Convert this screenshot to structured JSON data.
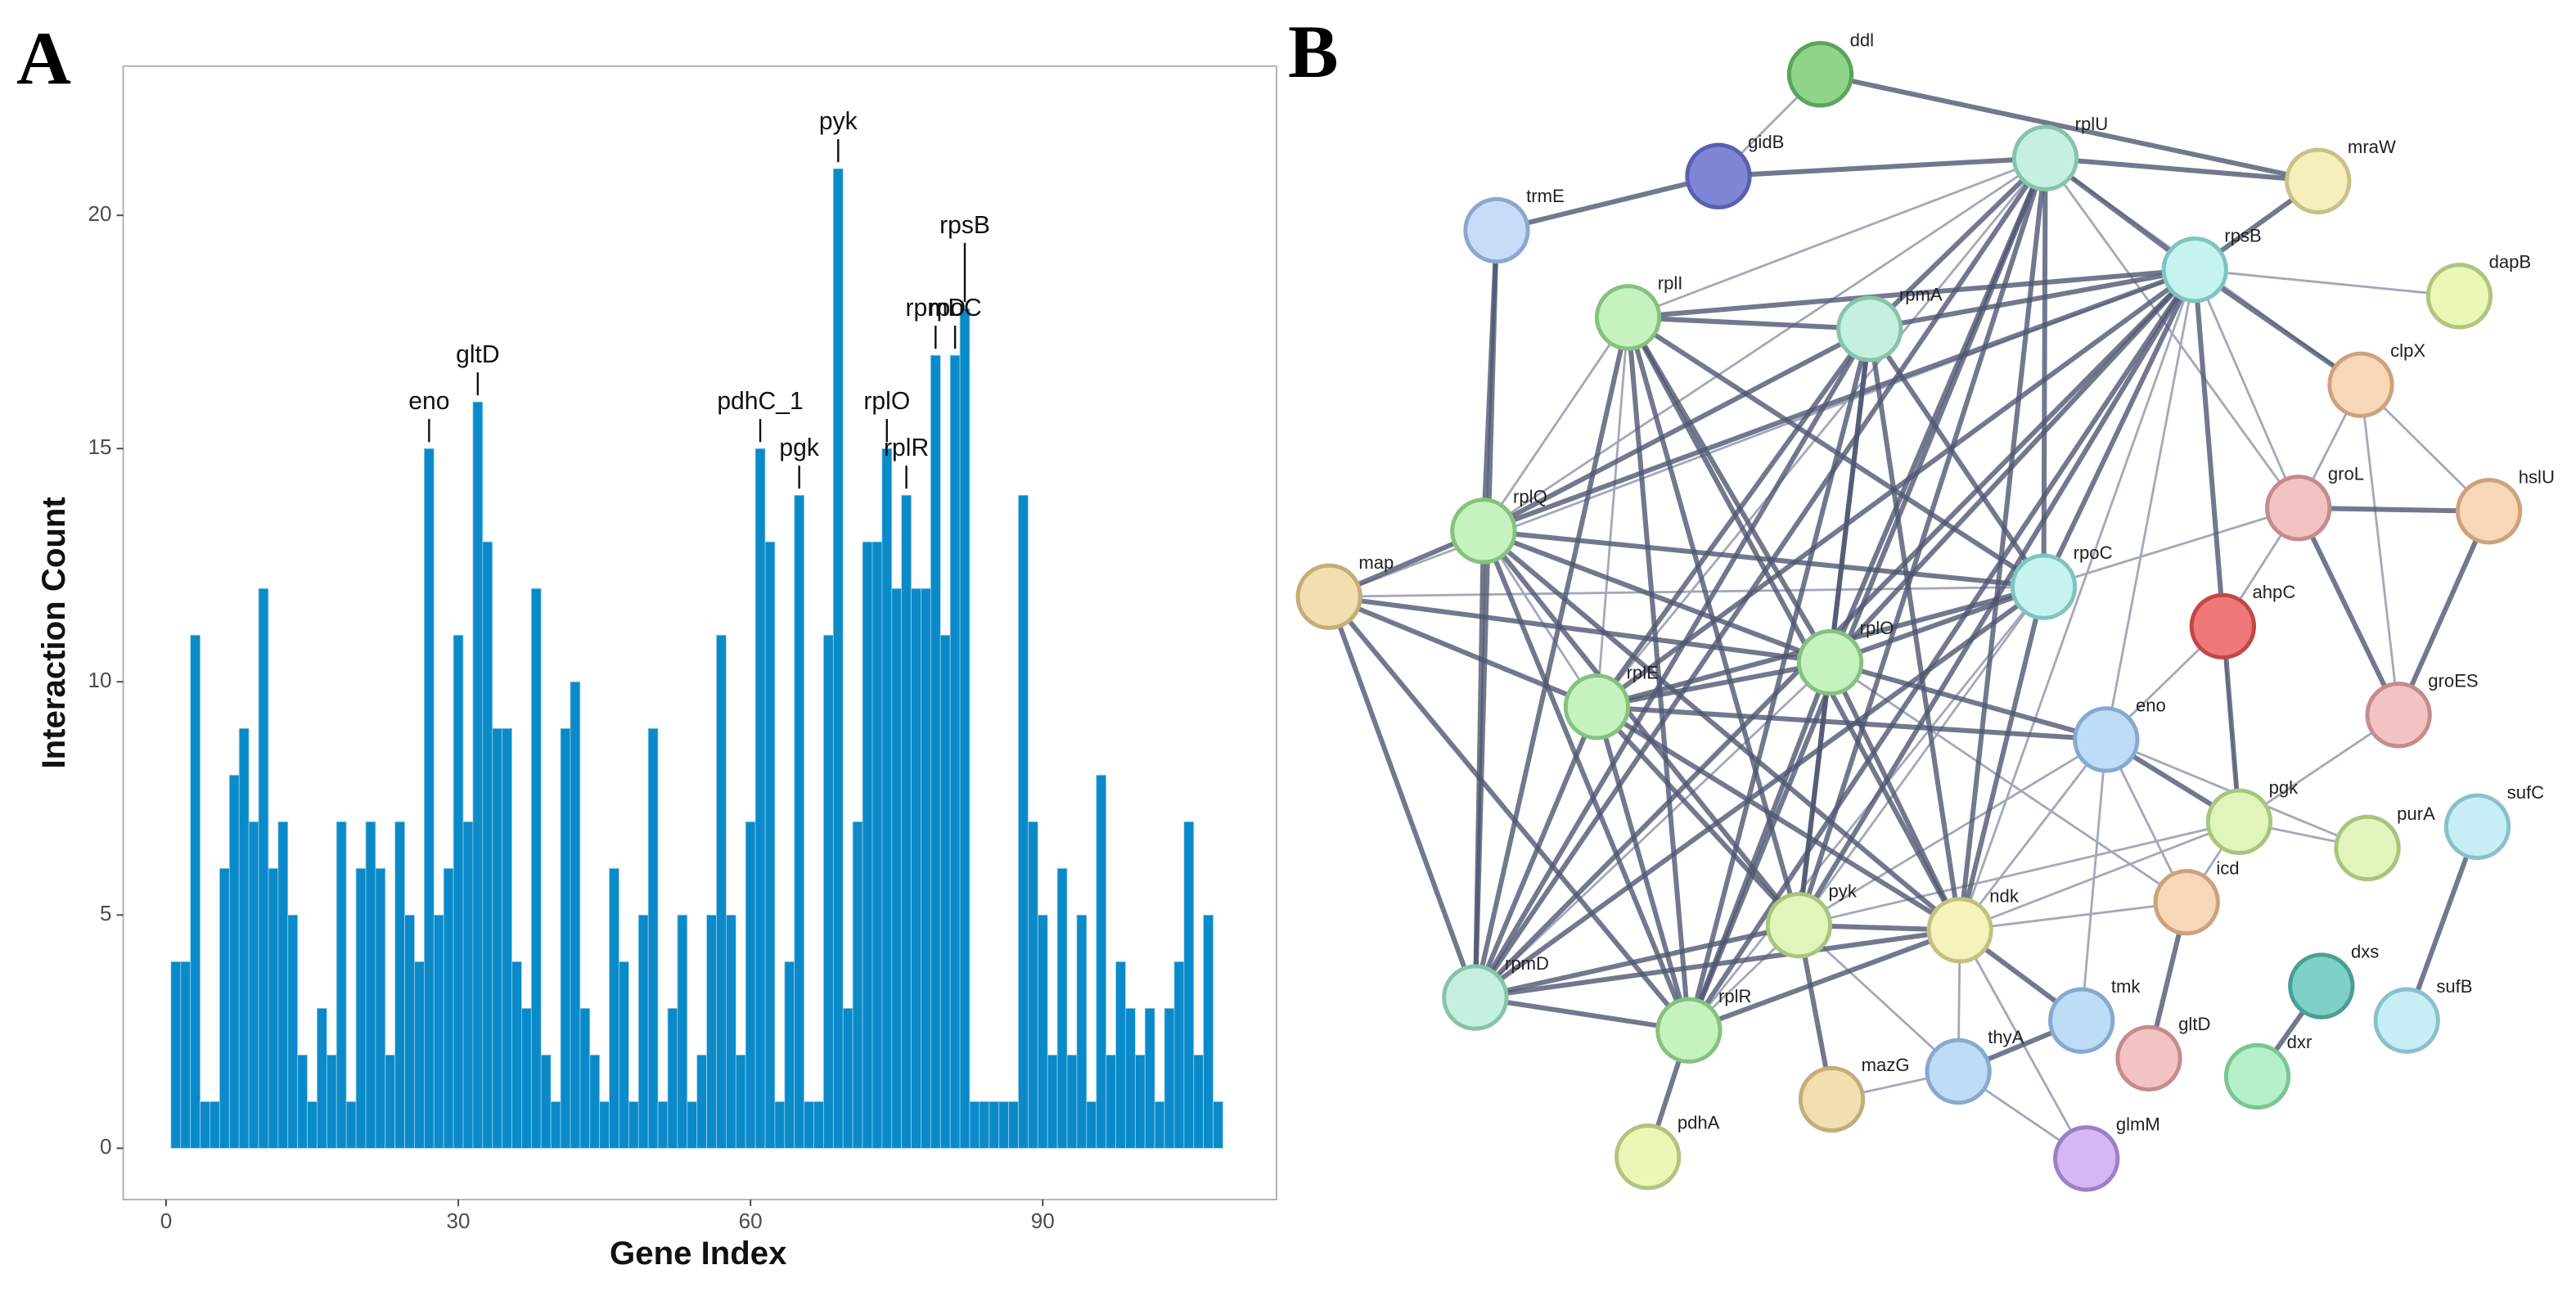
{
  "panel_labels": [
    "A",
    "B"
  ],
  "chart_data": {
    "type": "bar",
    "xlabel": "Gene Index",
    "ylabel": "Interaction Count",
    "color": "#0a8ac8",
    "x": [
      1,
      2,
      3,
      4,
      5,
      6,
      7,
      8,
      9,
      10,
      11,
      12,
      13,
      14,
      15,
      16,
      17,
      18,
      19,
      20,
      21,
      22,
      23,
      24,
      25,
      26,
      27,
      28,
      29,
      30,
      31,
      32,
      33,
      34,
      35,
      36,
      37,
      38,
      39,
      40,
      41,
      42,
      43,
      44,
      45,
      46,
      47,
      48,
      49,
      50,
      51,
      52,
      53,
      54,
      55,
      56,
      57,
      58,
      59,
      60,
      61,
      62,
      63,
      64,
      65,
      66,
      67,
      68,
      69,
      70,
      71,
      72,
      73,
      74,
      75,
      76,
      77,
      78,
      79,
      80,
      81,
      82,
      83,
      84,
      85,
      86,
      87,
      88,
      89,
      90,
      91,
      92,
      93,
      94,
      95,
      96,
      97,
      98,
      99,
      100,
      101,
      102,
      103,
      104,
      105,
      106,
      107,
      108
    ],
    "values": [
      4,
      4,
      11,
      1,
      1,
      6,
      8,
      9,
      7,
      12,
      6,
      7,
      5,
      2,
      1,
      3,
      2,
      7,
      1,
      6,
      7,
      6,
      2,
      7,
      5,
      4,
      15,
      5,
      6,
      11,
      7,
      16,
      13,
      9,
      9,
      4,
      3,
      12,
      2,
      1,
      9,
      10,
      3,
      2,
      1,
      6,
      4,
      1,
      5,
      9,
      1,
      3,
      5,
      1,
      2,
      5,
      11,
      5,
      2,
      7,
      15,
      13,
      1,
      4,
      14,
      1,
      1,
      11,
      21,
      3,
      7,
      13,
      13,
      15,
      12,
      14,
      12,
      12,
      17,
      11,
      17,
      18,
      1,
      1,
      1,
      1,
      1,
      14,
      7,
      5,
      2,
      6,
      2,
      5,
      1,
      8,
      2,
      4,
      3,
      2,
      3,
      1,
      3,
      4,
      7,
      2,
      5,
      1
    ],
    "xlim": [
      -4.4,
      114
    ],
    "ylim": [
      -1.1,
      23.2
    ],
    "xticks": [
      0,
      30,
      60,
      90
    ],
    "yticks": [
      0,
      5,
      10,
      15,
      20
    ],
    "grid": false,
    "annotations": [
      {
        "text": "eno",
        "x": 27
      },
      {
        "text": "gltD",
        "x": 32
      },
      {
        "text": "pdhC_1",
        "x": 61
      },
      {
        "text": "pgk",
        "x": 65
      },
      {
        "text": "pyk",
        "x": 69
      },
      {
        "text": "rplO",
        "x": 74
      },
      {
        "text": "rplR",
        "x": 76
      },
      {
        "text": "rpmD",
        "x": 79
      },
      {
        "text": "rpsB",
        "x": 82
      },
      {
        "text": "rpoC",
        "x": 81
      }
    ]
  },
  "network": {
    "nodes": [
      "ddl",
      "gidB",
      "rplU",
      "mraW",
      "trmE",
      "rpsB",
      "dapB",
      "rplI",
      "rpmA",
      "clpX",
      "hslU",
      "groL",
      "rplQ",
      "map",
      "rpoC",
      "ahpC",
      "rplO",
      "rplE",
      "groES",
      "eno",
      "pgk",
      "purA",
      "sufC",
      "icd",
      "pyk",
      "ndk",
      "rpmD",
      "dxs",
      "sufB",
      "rplR",
      "tmk",
      "gltD",
      "thyA",
      "dxr",
      "mazG",
      "pdhA",
      "glmM"
    ]
  }
}
